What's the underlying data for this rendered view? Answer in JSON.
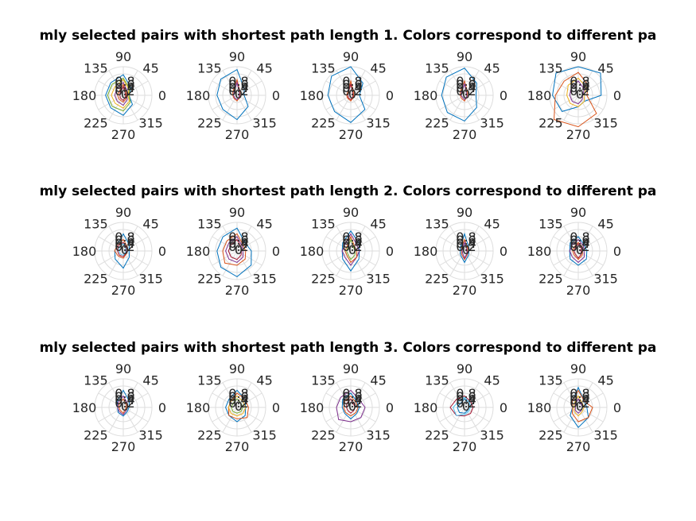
{
  "chart_data": [
    {
      "type": "polar-line",
      "title": "mly selected pairs with shortest path length 1. Colors correspond to different pa",
      "angle_ticks": [
        "0",
        "45",
        "90",
        "135",
        "180",
        "225",
        "270",
        "315"
      ],
      "radial_ticks": [
        "0",
        "0.2",
        "0.4",
        "0.6",
        "0.8"
      ],
      "grid": true,
      "panels": [
        {
          "series": [
            {
              "color": "#0072BD",
              "r": [
                0.2,
                0.38,
                0.72,
                0.62,
                0.62,
                0.62,
                0.7,
                0.45
              ]
            },
            {
              "color": "#77AC30",
              "r": [
                0.2,
                0.32,
                0.6,
                0.55,
                0.55,
                0.55,
                0.55,
                0.35
              ]
            },
            {
              "color": "#EDB120",
              "r": [
                0.16,
                0.28,
                0.55,
                0.42,
                0.42,
                0.4,
                0.45,
                0.3
              ]
            },
            {
              "color": "#7E2F8E",
              "r": [
                0.12,
                0.2,
                0.45,
                0.32,
                0.3,
                0.3,
                0.35,
                0.2
              ]
            },
            {
              "color": "#D95319",
              "r": [
                0.1,
                0.15,
                0.38,
                0.2,
                0.2,
                0.2,
                0.24,
                0.15
              ]
            },
            {
              "color": "#A2142F",
              "r": [
                0.08,
                0.1,
                0.3,
                0.15,
                0.12,
                0.14,
                0.18,
                0.1
              ]
            }
          ]
        },
        {
          "series": [
            {
              "color": "#0072BD",
              "r": [
                0.25,
                0.35,
                0.9,
                0.8,
                0.7,
                0.7,
                0.85,
                0.55
              ]
            },
            {
              "color": "#D95319",
              "r": [
                0.1,
                0.15,
                0.55,
                0.2,
                0.15,
                0.15,
                0.2,
                0.12
              ]
            },
            {
              "color": "#7E2F8E",
              "r": [
                0.08,
                0.12,
                0.45,
                0.15,
                0.12,
                0.12,
                0.15,
                0.1
              ]
            }
          ]
        },
        {
          "series": [
            {
              "color": "#0072BD",
              "r": [
                0.3,
                0.6,
                1.0,
                0.95,
                0.8,
                0.8,
                0.95,
                0.7
              ]
            },
            {
              "color": "#D95319",
              "r": [
                0.1,
                0.15,
                0.5,
                0.15,
                0.15,
                0.15,
                0.2,
                0.12
              ]
            },
            {
              "color": "#A2142F",
              "r": [
                0.08,
                0.1,
                0.4,
                0.12,
                0.1,
                0.12,
                0.15,
                0.1
              ]
            }
          ]
        },
        {
          "series": [
            {
              "color": "#0072BD",
              "r": [
                0.4,
                0.6,
                0.95,
                0.9,
                0.8,
                0.85,
                0.9,
                0.6
              ]
            },
            {
              "color": "#D95319",
              "r": [
                0.1,
                0.15,
                0.5,
                0.2,
                0.15,
                0.15,
                0.2,
                0.1
              ]
            },
            {
              "color": "#7E2F8E",
              "r": [
                0.08,
                0.1,
                0.4,
                0.15,
                0.12,
                0.1,
                0.15,
                0.1
              ]
            }
          ]
        },
        {
          "series": [
            {
              "color": "#0072BD",
              "r": [
                0.8,
                1.1,
                1.0,
                1.1,
                0.9,
                0.8,
                0.4,
                0.3
              ]
            },
            {
              "color": "#D95319",
              "r": [
                0.3,
                0.5,
                0.8,
                0.7,
                0.8,
                1.2,
                1.1,
                0.9
              ]
            },
            {
              "color": "#EDB120",
              "r": [
                0.2,
                0.4,
                0.6,
                0.5,
                0.4,
                0.4,
                0.4,
                0.3
              ]
            },
            {
              "color": "#7E2F8E",
              "r": [
                0.15,
                0.3,
                0.5,
                0.35,
                0.3,
                0.3,
                0.3,
                0.2
              ]
            }
          ]
        }
      ]
    },
    {
      "type": "polar-line",
      "title": "mly selected pairs with shortest path length 2. Colors correspond to different pa",
      "angle_ticks": [
        "0",
        "45",
        "90",
        "135",
        "180",
        "225",
        "270",
        "315"
      ],
      "radial_ticks": [
        "0",
        "0.2",
        "0.4",
        "0.6",
        "0.8"
      ],
      "grid": true,
      "panels": [
        {
          "series": [
            {
              "color": "#0072BD",
              "r": [
                0.2,
                0.3,
                0.6,
                0.3,
                0.3,
                0.4,
                0.6,
                0.3
              ]
            },
            {
              "color": "#D95319",
              "r": [
                0.15,
                0.2,
                0.4,
                0.3,
                0.3,
                0.25,
                0.25,
                0.15
              ]
            },
            {
              "color": "#A2142F",
              "r": [
                0.1,
                0.15,
                0.3,
                0.25,
                0.2,
                0.2,
                0.2,
                0.12
              ]
            },
            {
              "color": "#4DBEEE",
              "r": [
                0.08,
                0.12,
                0.25,
                0.2,
                0.15,
                0.15,
                0.15,
                0.1
              ]
            }
          ]
        },
        {
          "series": [
            {
              "color": "#0072BD",
              "r": [
                0.5,
                0.4,
                0.8,
                0.7,
                0.7,
                0.8,
                0.9,
                0.7
              ]
            },
            {
              "color": "#D95319",
              "r": [
                0.3,
                0.3,
                0.6,
                0.5,
                0.5,
                0.6,
                0.5,
                0.4
              ]
            },
            {
              "color": "#7E2F8E",
              "r": [
                0.2,
                0.25,
                0.5,
                0.4,
                0.4,
                0.4,
                0.4,
                0.3
              ]
            },
            {
              "color": "#A2142F",
              "r": [
                0.15,
                0.2,
                0.4,
                0.3,
                0.3,
                0.3,
                0.3,
                0.2
              ]
            }
          ]
        },
        {
          "series": [
            {
              "color": "#0072BD",
              "r": [
                0.3,
                0.4,
                0.7,
                0.4,
                0.3,
                0.4,
                0.7,
                0.4
              ]
            },
            {
              "color": "#7E2F8E",
              "r": [
                0.3,
                0.3,
                0.6,
                0.3,
                0.3,
                0.3,
                0.5,
                0.3
              ]
            },
            {
              "color": "#D95319",
              "r": [
                0.2,
                0.2,
                0.5,
                0.2,
                0.2,
                0.2,
                0.4,
                0.3
              ]
            },
            {
              "color": "#77AC30",
              "r": [
                0.15,
                0.15,
                0.4,
                0.15,
                0.15,
                0.15,
                0.3,
                0.2
              ]
            }
          ]
        },
        {
          "series": [
            {
              "color": "#0072BD",
              "r": [
                0.15,
                0.2,
                0.6,
                0.2,
                0.15,
                0.2,
                0.4,
                0.2
              ]
            },
            {
              "color": "#D95319",
              "r": [
                0.1,
                0.15,
                0.4,
                0.15,
                0.1,
                0.15,
                0.3,
                0.15
              ]
            },
            {
              "color": "#7E2F8E",
              "r": [
                0.08,
                0.1,
                0.3,
                0.1,
                0.08,
                0.1,
                0.25,
                0.12
              ]
            }
          ]
        },
        {
          "series": [
            {
              "color": "#0072BD",
              "r": [
                0.3,
                0.3,
                0.5,
                0.4,
                0.3,
                0.4,
                0.5,
                0.4
              ]
            },
            {
              "color": "#7E2F8E",
              "r": [
                0.2,
                0.25,
                0.4,
                0.3,
                0.3,
                0.3,
                0.4,
                0.3
              ]
            },
            {
              "color": "#D95319",
              "r": [
                0.15,
                0.2,
                0.3,
                0.2,
                0.2,
                0.2,
                0.3,
                0.2
              ]
            },
            {
              "color": "#A2142F",
              "r": [
                0.1,
                0.15,
                0.25,
                0.15,
                0.15,
                0.15,
                0.25,
                0.15
              ]
            }
          ]
        }
      ]
    },
    {
      "type": "polar-line",
      "title": "mly selected pairs with shortest path length 3. Colors correspond to different pa",
      "angle_ticks": [
        "0",
        "45",
        "90",
        "135",
        "180",
        "225",
        "270",
        "315"
      ],
      "radial_ticks": [
        "0",
        "0.2",
        "0.4",
        "0.6",
        "0.8"
      ],
      "grid": true,
      "panels": [
        {
          "series": [
            {
              "color": "#0072BD",
              "r": [
                0.2,
                0.3,
                0.6,
                0.3,
                0.2,
                0.25,
                0.3,
                0.2
              ]
            },
            {
              "color": "#7E2F8E",
              "r": [
                0.15,
                0.2,
                0.4,
                0.25,
                0.2,
                0.2,
                0.25,
                0.15
              ]
            },
            {
              "color": "#D95319",
              "r": [
                0.1,
                0.15,
                0.3,
                0.2,
                0.15,
                0.15,
                0.2,
                0.1
              ]
            }
          ]
        },
        {
          "series": [
            {
              "color": "#0072BD",
              "r": [
                0.3,
                0.4,
                0.6,
                0.4,
                0.4,
                0.4,
                0.5,
                0.4
              ]
            },
            {
              "color": "#D95319",
              "r": [
                0.4,
                0.4,
                0.5,
                0.3,
                0.3,
                0.4,
                0.4,
                0.5
              ]
            },
            {
              "color": "#EDB120",
              "r": [
                0.3,
                0.3,
                0.4,
                0.3,
                0.3,
                0.3,
                0.3,
                0.3
              ]
            },
            {
              "color": "#77AC30",
              "r": [
                0.2,
                0.2,
                0.3,
                0.2,
                0.2,
                0.2,
                0.2,
                0.2
              ]
            }
          ]
        },
        {
          "series": [
            {
              "color": "#7E2F8E",
              "r": [
                0.5,
                0.4,
                0.6,
                0.5,
                0.5,
                0.6,
                0.5,
                0.5
              ]
            },
            {
              "color": "#0072BD",
              "r": [
                0.3,
                0.3,
                0.5,
                0.4,
                0.3,
                0.3,
                0.4,
                0.3
              ]
            },
            {
              "color": "#D95319",
              "r": [
                0.25,
                0.25,
                0.4,
                0.3,
                0.25,
                0.25,
                0.3,
                0.25
              ]
            },
            {
              "color": "#A2142F",
              "r": [
                0.15,
                0.15,
                0.3,
                0.2,
                0.15,
                0.15,
                0.2,
                0.15
              ]
            }
          ]
        },
        {
          "series": [
            {
              "color": "#A2142F",
              "r": [
                0.3,
                0.3,
                0.4,
                0.4,
                0.5,
                0.4,
                0.3,
                0.3
              ]
            },
            {
              "color": "#4DBEEE",
              "r": [
                0.2,
                0.25,
                0.35,
                0.3,
                0.4,
                0.4,
                0.25,
                0.2
              ]
            },
            {
              "color": "#0072BD",
              "r": [
                0.15,
                0.2,
                0.3,
                0.2,
                0.25,
                0.25,
                0.2,
                0.15
              ]
            }
          ]
        },
        {
          "series": [
            {
              "color": "#0072BD",
              "r": [
                0.3,
                0.3,
                0.7,
                0.3,
                0.2,
                0.4,
                0.7,
                0.5
              ]
            },
            {
              "color": "#D95319",
              "r": [
                0.5,
                0.3,
                0.6,
                0.3,
                0.2,
                0.3,
                0.5,
                0.5
              ]
            },
            {
              "color": "#EDB120",
              "r": [
                0.2,
                0.2,
                0.4,
                0.2,
                0.15,
                0.2,
                0.3,
                0.2
              ]
            },
            {
              "color": "#7E2F8E",
              "r": [
                0.15,
                0.15,
                0.3,
                0.15,
                0.1,
                0.15,
                0.2,
                0.15
              ]
            }
          ]
        }
      ]
    }
  ]
}
